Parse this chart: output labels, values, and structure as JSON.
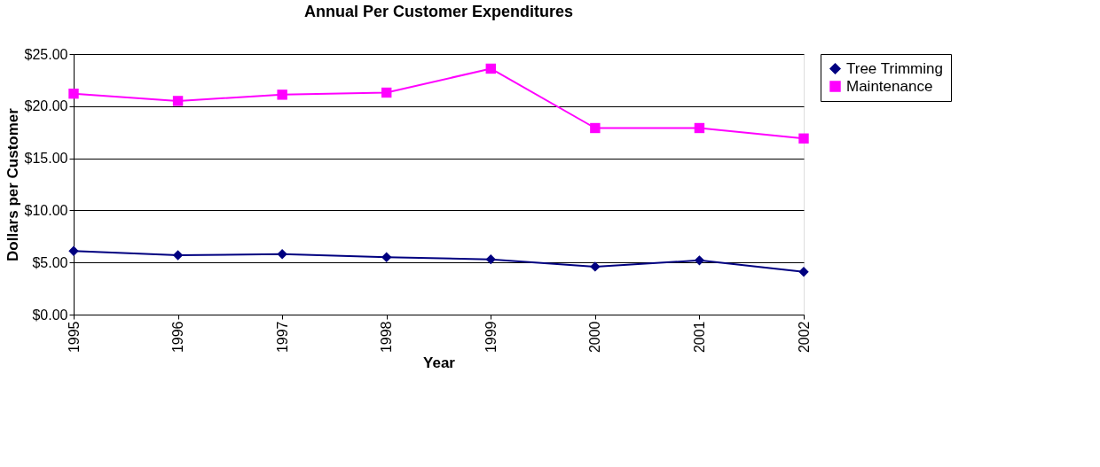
{
  "chart_data": {
    "type": "line",
    "title": "Annual Per Customer Expenditures",
    "xlabel": "Year",
    "ylabel": "Dollars per Customer",
    "categories": [
      "1995",
      "1996",
      "1997",
      "1998",
      "1999",
      "2000",
      "2001",
      "2002"
    ],
    "series": [
      {
        "name": "Tree Trimming",
        "color": "#000080",
        "marker": "diamond",
        "values": [
          6.1,
          5.7,
          5.8,
          5.5,
          5.3,
          4.6,
          5.2,
          4.1
        ]
      },
      {
        "name": "Maintenance",
        "color": "#ff00ff",
        "marker": "square",
        "values": [
          21.2,
          20.5,
          21.1,
          21.3,
          23.6,
          17.9,
          17.9,
          16.9
        ]
      }
    ],
    "ylim": [
      0,
      25
    ],
    "yticks": [
      {
        "value": 0,
        "label": "$0.00"
      },
      {
        "value": 5,
        "label": "$5.00"
      },
      {
        "value": 10,
        "label": "$10.00"
      },
      {
        "value": 15,
        "label": "$15.00"
      },
      {
        "value": 20,
        "label": "$20.00"
      },
      {
        "value": 25,
        "label": "$25.00"
      }
    ],
    "grid": "y",
    "legend": "right",
    "line_style": "solid"
  }
}
